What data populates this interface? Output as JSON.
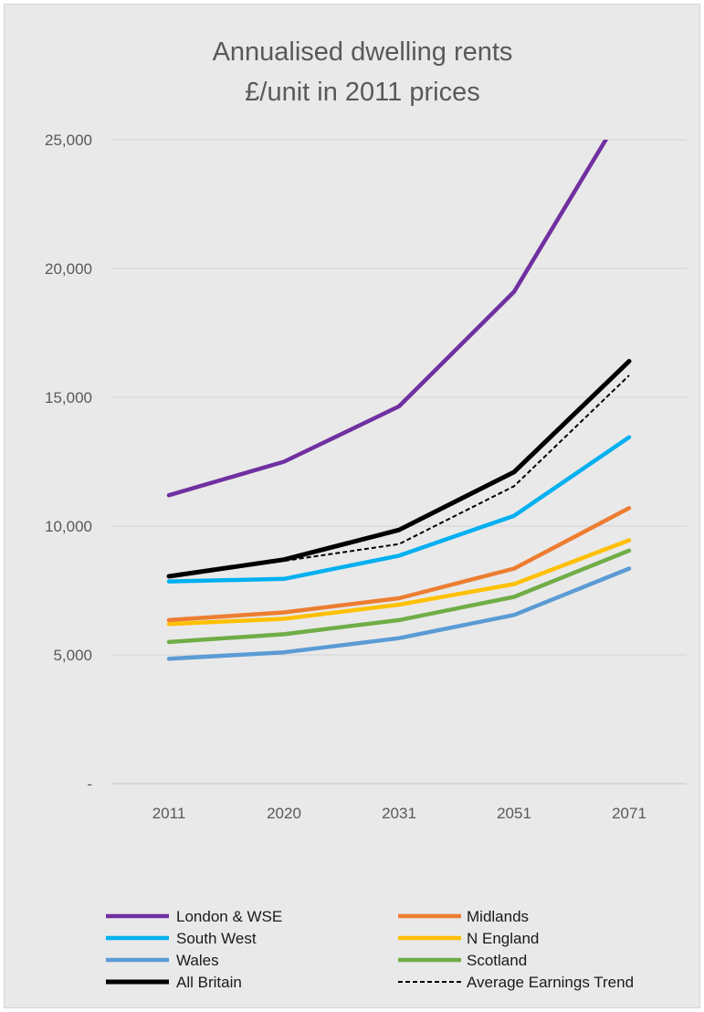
{
  "chart_data": {
    "type": "line",
    "title_lines": [
      "Annualised dwelling rents",
      "£/unit in 2011 prices"
    ],
    "categories": [
      "2011",
      "2020",
      "2031",
      "2051",
      "2071"
    ],
    "y_ticks": [
      {
        "value": 0,
        "label": "-"
      },
      {
        "value": 5000,
        "label": "5,000"
      },
      {
        "value": 10000,
        "label": "10,000"
      },
      {
        "value": 15000,
        "label": "15,000"
      },
      {
        "value": 20000,
        "label": "20,000"
      },
      {
        "value": 25000,
        "label": "25,000"
      }
    ],
    "ylim": [
      0,
      25000
    ],
    "grid": true,
    "legend_position": "bottom",
    "series": [
      {
        "name": "London & WSE",
        "color": "#7030a0",
        "style": "solid",
        "values": [
          11200,
          12500,
          14650,
          19100,
          26500
        ]
      },
      {
        "name": "Midlands",
        "color": "#ed7d31",
        "style": "solid",
        "values": [
          6350,
          6650,
          7200,
          8350,
          10700
        ]
      },
      {
        "name": "South West",
        "color": "#00b0f0",
        "style": "solid",
        "values": [
          7850,
          7950,
          8850,
          10400,
          13450
        ]
      },
      {
        "name": "N England",
        "color": "#ffc000",
        "style": "solid",
        "values": [
          6200,
          6400,
          6950,
          7750,
          9450
        ]
      },
      {
        "name": "Wales",
        "color": "#5b9bd5",
        "style": "solid",
        "values": [
          4850,
          5100,
          5650,
          6550,
          8350
        ]
      },
      {
        "name": "Scotland",
        "color": "#70ad47",
        "style": "solid",
        "values": [
          5500,
          5800,
          6350,
          7250,
          9050
        ]
      },
      {
        "name": "All Britain",
        "color": "#000000",
        "style": "solid",
        "values": [
          8050,
          8700,
          9850,
          12100,
          16400
        ]
      },
      {
        "name": "Average Earnings Trend",
        "color": "#000000",
        "style": "dashed",
        "values": [
          8050,
          8650,
          9300,
          11550,
          15850
        ]
      }
    ]
  }
}
